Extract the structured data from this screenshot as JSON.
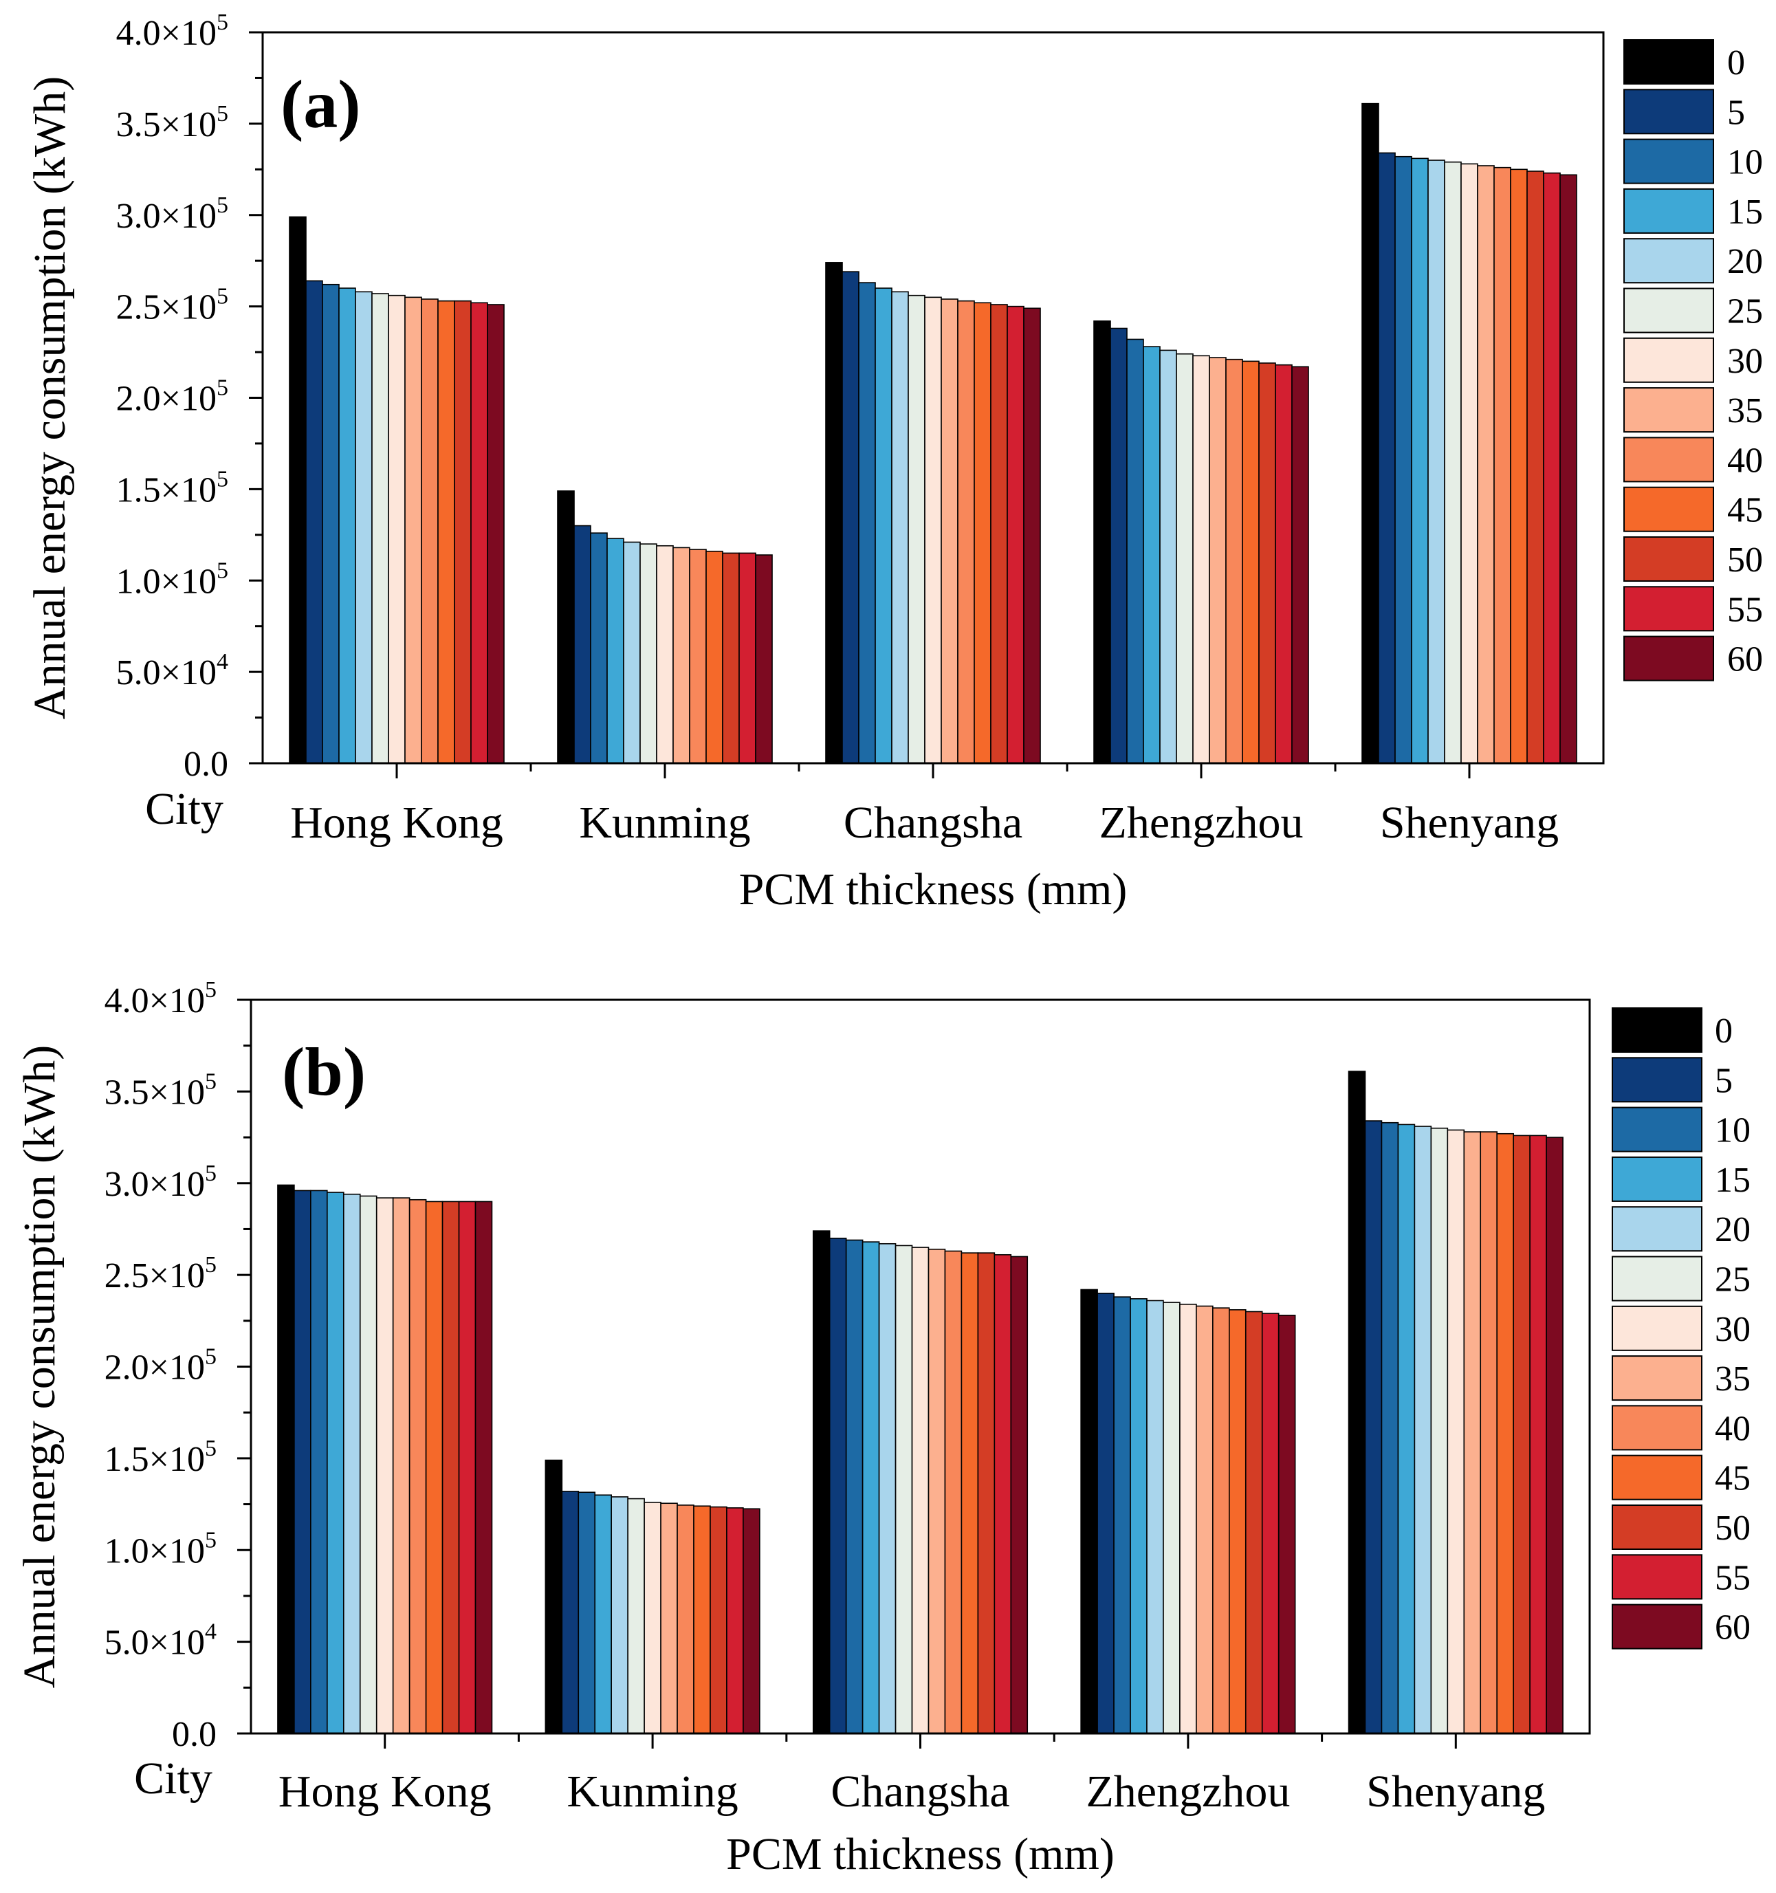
{
  "chart_data": [
    {
      "type": "bar",
      "panel_label": "(a)",
      "ylabel": "Annual energy consumption (kWh)",
      "xlabel": "PCM thickness (mm)",
      "category_axis_title": "City",
      "categories": [
        "Hong Kong",
        "Kunming",
        "Changsha",
        "Zhengzhou",
        "Shenyang"
      ],
      "ylim": [
        0,
        400000
      ],
      "yticks": [
        {
          "value": 0,
          "mantissa": "0.0",
          "exp": ""
        },
        {
          "value": 50000,
          "mantissa": "5.0×10",
          "exp": "4"
        },
        {
          "value": 100000,
          "mantissa": "1.0×10",
          "exp": "5"
        },
        {
          "value": 150000,
          "mantissa": "1.5×10",
          "exp": "5"
        },
        {
          "value": 200000,
          "mantissa": "2.0×10",
          "exp": "5"
        },
        {
          "value": 250000,
          "mantissa": "2.5×10",
          "exp": "5"
        },
        {
          "value": 300000,
          "mantissa": "3.0×10",
          "exp": "5"
        },
        {
          "value": 350000,
          "mantissa": "3.5×10",
          "exp": "5"
        },
        {
          "value": 400000,
          "mantissa": "4.0×10",
          "exp": "5"
        }
      ],
      "legend_placement": "right",
      "grid": false,
      "series": [
        {
          "name": "0",
          "values": [
            299000,
            149000,
            274000,
            242000,
            361000
          ]
        },
        {
          "name": "5",
          "values": [
            264000,
            130000,
            269000,
            238000,
            334000
          ]
        },
        {
          "name": "10",
          "values": [
            262000,
            126000,
            263000,
            232000,
            332000
          ]
        },
        {
          "name": "15",
          "values": [
            260000,
            123000,
            260000,
            228000,
            331000
          ]
        },
        {
          "name": "20",
          "values": [
            258000,
            121000,
            258000,
            226000,
            330000
          ]
        },
        {
          "name": "25",
          "values": [
            257000,
            120000,
            256000,
            224000,
            329000
          ]
        },
        {
          "name": "30",
          "values": [
            256000,
            119000,
            255000,
            223000,
            328000
          ]
        },
        {
          "name": "35",
          "values": [
            255000,
            118000,
            254000,
            222000,
            327000
          ]
        },
        {
          "name": "40",
          "values": [
            254000,
            117000,
            253000,
            221000,
            326000
          ]
        },
        {
          "name": "45",
          "values": [
            253000,
            116000,
            252000,
            220000,
            325000
          ]
        },
        {
          "name": "50",
          "values": [
            253000,
            115000,
            251000,
            219000,
            324000
          ]
        },
        {
          "name": "55",
          "values": [
            252000,
            115000,
            250000,
            218000,
            323000
          ]
        },
        {
          "name": "60",
          "values": [
            251000,
            114000,
            249000,
            217000,
            322000
          ]
        }
      ]
    },
    {
      "type": "bar",
      "panel_label": "(b)",
      "ylabel": "Annual energy consumption (kWh)",
      "xlabel": "PCM thickness (mm)",
      "category_axis_title": "City",
      "categories": [
        "Hong Kong",
        "Kunming",
        "Changsha",
        "Zhengzhou",
        "Shenyang"
      ],
      "ylim": [
        0,
        400000
      ],
      "yticks": [
        {
          "value": 0,
          "mantissa": "0.0",
          "exp": ""
        },
        {
          "value": 50000,
          "mantissa": "5.0×10",
          "exp": "4"
        },
        {
          "value": 100000,
          "mantissa": "1.0×10",
          "exp": "5"
        },
        {
          "value": 150000,
          "mantissa": "1.5×10",
          "exp": "5"
        },
        {
          "value": 200000,
          "mantissa": "2.0×10",
          "exp": "5"
        },
        {
          "value": 250000,
          "mantissa": "2.5×10",
          "exp": "5"
        },
        {
          "value": 300000,
          "mantissa": "3.0×10",
          "exp": "5"
        },
        {
          "value": 350000,
          "mantissa": "3.5×10",
          "exp": "5"
        },
        {
          "value": 400000,
          "mantissa": "4.0×10",
          "exp": "5"
        }
      ],
      "legend_placement": "right",
      "grid": false,
      "series": [
        {
          "name": "0",
          "values": [
            299000,
            149000,
            274000,
            242000,
            361000
          ]
        },
        {
          "name": "5",
          "values": [
            296000,
            132000,
            270000,
            240000,
            334000
          ]
        },
        {
          "name": "10",
          "values": [
            296000,
            131500,
            269000,
            238000,
            333000
          ]
        },
        {
          "name": "15",
          "values": [
            295000,
            130000,
            268000,
            237000,
            332000
          ]
        },
        {
          "name": "20",
          "values": [
            294000,
            129000,
            267000,
            236000,
            331000
          ]
        },
        {
          "name": "25",
          "values": [
            293000,
            128000,
            266000,
            235000,
            330000
          ]
        },
        {
          "name": "30",
          "values": [
            292000,
            126000,
            265000,
            234000,
            329000
          ]
        },
        {
          "name": "35",
          "values": [
            292000,
            125500,
            264000,
            233000,
            328000
          ]
        },
        {
          "name": "40",
          "values": [
            291000,
            124500,
            263000,
            232000,
            328000
          ]
        },
        {
          "name": "45",
          "values": [
            290000,
            124000,
            262000,
            231000,
            327000
          ]
        },
        {
          "name": "50",
          "values": [
            290000,
            123500,
            262000,
            230000,
            326000
          ]
        },
        {
          "name": "55",
          "values": [
            290000,
            123000,
            261000,
            229000,
            326000
          ]
        },
        {
          "name": "60",
          "values": [
            290000,
            122500,
            260000,
            228000,
            325000
          ]
        }
      ]
    }
  ],
  "colors": [
    "#000000",
    "#0d3b7a",
    "#1d6aa5",
    "#3ea8d6",
    "#a9d5ec",
    "#e6eee6",
    "#fde6da",
    "#fcb08f",
    "#f8875a",
    "#f5692a",
    "#d43d25",
    "#d31f31",
    "#7d0a21"
  ]
}
